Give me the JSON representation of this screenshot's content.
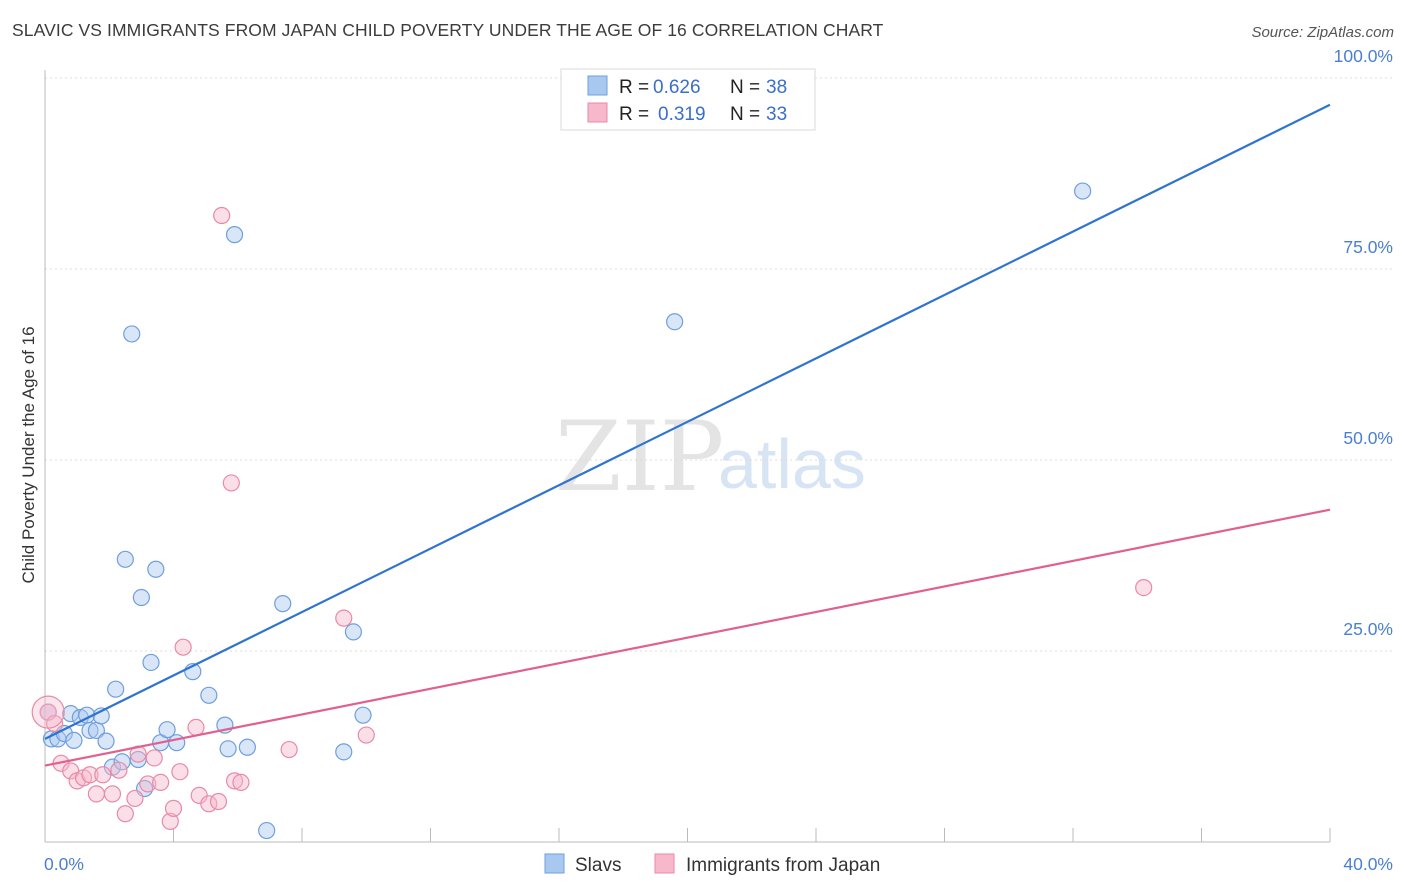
{
  "title": "SLAVIC VS IMMIGRANTS FROM JAPAN CHILD POVERTY UNDER THE AGE OF 16 CORRELATION CHART",
  "source": "Source: ZipAtlas.com",
  "watermark": {
    "zip": "ZIP",
    "atlas": "atlas"
  },
  "colors": {
    "slavs_fill": "#a8c8f0",
    "slavs_stroke": "#6f9fdc",
    "slavs_line": "#2f74d0",
    "japan_fill": "#f7b8cb",
    "japan_stroke": "#e88aa6",
    "japan_line": "#e0608f",
    "grid": "#dddddd",
    "tick_text": "#4a7fcf"
  },
  "legend_box": {
    "rows": [
      {
        "r_label": "R =",
        "r_value": "0.626",
        "n_label": "N =",
        "n_value": "38"
      },
      {
        "r_label": "R =",
        "r_value": "0.319",
        "n_label": "N =",
        "n_value": "33"
      }
    ]
  },
  "chart_data": {
    "type": "scatter",
    "title": "SLAVIC VS IMMIGRANTS FROM JAPAN CHILD POVERTY UNDER THE AGE OF 16 CORRELATION CHART",
    "xlabel": "",
    "ylabel": "Child Poverty Under the Age of 16",
    "xlim": [
      0,
      40
    ],
    "ylim": [
      0,
      100
    ],
    "x_tick_labels": [
      "0.0%",
      "40.0%"
    ],
    "y_tick_values": [
      25,
      50,
      75,
      100
    ],
    "y_tick_labels": [
      "25.0%",
      "50.0%",
      "75.0%",
      "100.0%"
    ],
    "grid": true,
    "legend_position": "top-center",
    "series": [
      {
        "name": "Slavs",
        "R": 0.626,
        "N": 38,
        "trend": {
          "x": [
            0,
            40
          ],
          "y": [
            13.5,
            96.5
          ]
        },
        "points": [
          {
            "x": 0.1,
            "y": 17.0
          },
          {
            "x": 0.2,
            "y": 13.5
          },
          {
            "x": 0.4,
            "y": 13.5
          },
          {
            "x": 0.6,
            "y": 14.2
          },
          {
            "x": 0.8,
            "y": 16.8
          },
          {
            "x": 0.9,
            "y": 13.3
          },
          {
            "x": 1.1,
            "y": 16.3
          },
          {
            "x": 1.3,
            "y": 16.6
          },
          {
            "x": 1.4,
            "y": 14.6
          },
          {
            "x": 1.6,
            "y": 14.6
          },
          {
            "x": 1.75,
            "y": 16.5
          },
          {
            "x": 1.9,
            "y": 13.2
          },
          {
            "x": 2.1,
            "y": 9.8
          },
          {
            "x": 2.2,
            "y": 20.0
          },
          {
            "x": 2.4,
            "y": 10.5
          },
          {
            "x": 2.5,
            "y": 37.0
          },
          {
            "x": 2.7,
            "y": 66.5
          },
          {
            "x": 2.9,
            "y": 10.8
          },
          {
            "x": 3.0,
            "y": 32.0
          },
          {
            "x": 3.1,
            "y": 7.0
          },
          {
            "x": 3.3,
            "y": 23.5
          },
          {
            "x": 3.45,
            "y": 35.7
          },
          {
            "x": 3.6,
            "y": 13.0
          },
          {
            "x": 3.8,
            "y": 14.7
          },
          {
            "x": 4.1,
            "y": 13.0
          },
          {
            "x": 4.6,
            "y": 22.3
          },
          {
            "x": 5.1,
            "y": 19.2
          },
          {
            "x": 5.6,
            "y": 15.3
          },
          {
            "x": 5.7,
            "y": 12.2
          },
          {
            "x": 5.9,
            "y": 79.5
          },
          {
            "x": 6.3,
            "y": 12.4
          },
          {
            "x": 6.9,
            "y": 1.5
          },
          {
            "x": 7.4,
            "y": 31.2
          },
          {
            "x": 9.3,
            "y": 11.8
          },
          {
            "x": 9.6,
            "y": 27.5
          },
          {
            "x": 9.9,
            "y": 16.6
          },
          {
            "x": 19.6,
            "y": 68.1
          },
          {
            "x": 32.3,
            "y": 85.2
          }
        ]
      },
      {
        "name": "Immigrants from Japan",
        "R": 0.319,
        "N": 33,
        "trend": {
          "x": [
            0,
            40
          ],
          "y": [
            10.0,
            43.5
          ]
        },
        "points": [
          {
            "x": 0.1,
            "y": 17.0
          },
          {
            "x": 0.3,
            "y": 15.5
          },
          {
            "x": 0.5,
            "y": 10.3
          },
          {
            "x": 0.8,
            "y": 9.3
          },
          {
            "x": 1.0,
            "y": 8.0
          },
          {
            "x": 1.2,
            "y": 8.4
          },
          {
            "x": 1.4,
            "y": 8.8
          },
          {
            "x": 1.6,
            "y": 6.3
          },
          {
            "x": 1.8,
            "y": 8.8
          },
          {
            "x": 2.1,
            "y": 6.3
          },
          {
            "x": 2.3,
            "y": 9.4
          },
          {
            "x": 2.5,
            "y": 3.7
          },
          {
            "x": 2.8,
            "y": 5.7
          },
          {
            "x": 2.9,
            "y": 11.5
          },
          {
            "x": 3.2,
            "y": 7.6
          },
          {
            "x": 3.4,
            "y": 11.0
          },
          {
            "x": 3.6,
            "y": 7.8
          },
          {
            "x": 3.9,
            "y": 2.7
          },
          {
            "x": 4.0,
            "y": 4.4
          },
          {
            "x": 4.2,
            "y": 9.2
          },
          {
            "x": 4.3,
            "y": 25.5
          },
          {
            "x": 4.7,
            "y": 15.0
          },
          {
            "x": 4.8,
            "y": 6.1
          },
          {
            "x": 5.1,
            "y": 5.0
          },
          {
            "x": 5.4,
            "y": 5.3
          },
          {
            "x": 5.5,
            "y": 82.0
          },
          {
            "x": 5.8,
            "y": 47.0
          },
          {
            "x": 5.9,
            "y": 8.0
          },
          {
            "x": 6.1,
            "y": 7.8
          },
          {
            "x": 7.6,
            "y": 12.1
          },
          {
            "x": 9.3,
            "y": 29.3
          },
          {
            "x": 10.0,
            "y": 14.0
          },
          {
            "x": 34.2,
            "y": 33.3
          }
        ]
      }
    ]
  },
  "bottom_legend": [
    {
      "label": "Slavs"
    },
    {
      "label": "Immigrants from Japan"
    }
  ]
}
